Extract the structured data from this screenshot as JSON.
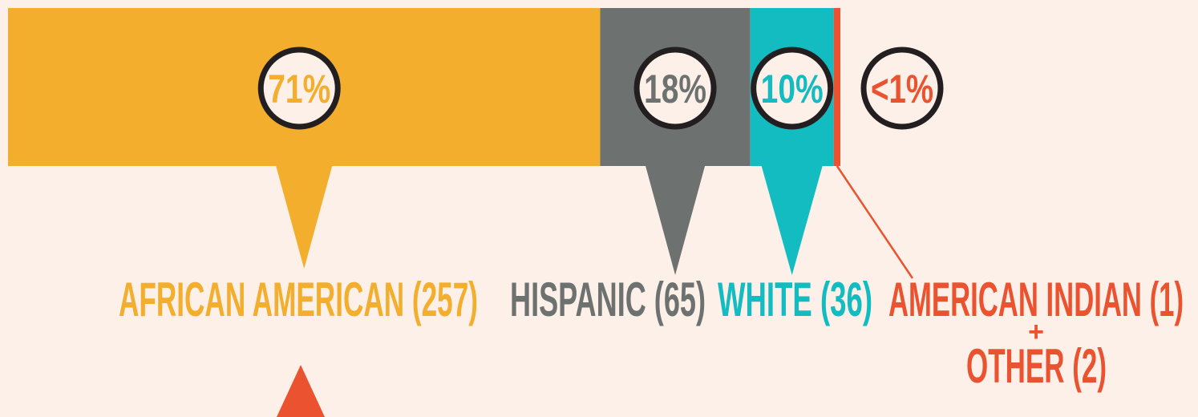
{
  "chart_data": {
    "type": "stacked-bar",
    "categories": [
      "AFRICAN AMERICAN (257)",
      "HISPANIC (65)",
      "WHITE (36)",
      "AMERICAN INDIAN (1)"
    ],
    "values": [
      71,
      18,
      10,
      0.8
    ],
    "value_labels": [
      "71%",
      "18%",
      "10%",
      "<1%"
    ],
    "colors": [
      "#f2ae2c",
      "#6d7270",
      "#12bcc0",
      "#eb5230"
    ],
    "annotations": [
      "+",
      "OTHER (2)"
    ]
  }
}
